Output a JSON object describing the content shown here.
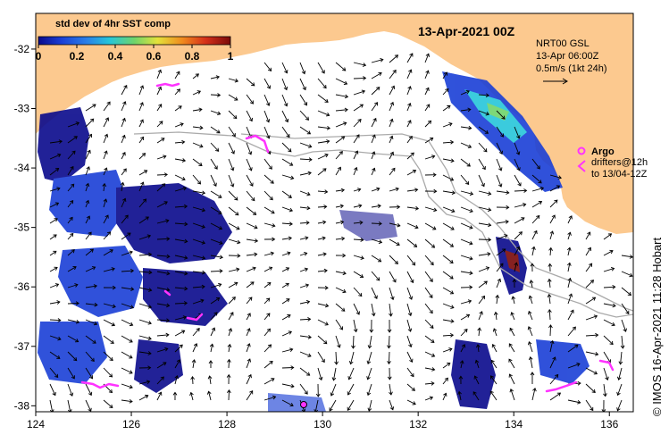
{
  "map": {
    "title": "13-Apr-2021 00Z",
    "credit": "©  IMOS 16-Apr-2021 11:28 Hobart",
    "land_color": "#fcc98f",
    "ocean_color": "#ffffff",
    "x_axis": {
      "min": 124,
      "max": 136.5,
      "ticks": [
        "124",
        "126",
        "128",
        "130",
        "132",
        "134",
        "136"
      ]
    },
    "y_axis": {
      "min": -38.1,
      "max": -31.4,
      "ticks": [
        "-32",
        "-33",
        "-34",
        "-35",
        "-36",
        "-37",
        "-38"
      ]
    },
    "colorbar": {
      "title": "std dev of 4hr SST comp",
      "ticks": [
        "0",
        "0.2",
        "0.4",
        "0.6",
        "0.8",
        "1"
      ],
      "colors": [
        "#0a0a8c",
        "#1a3fd6",
        "#2a7fe8",
        "#26c6da",
        "#6fd46a",
        "#e4e23a",
        "#f08a1e",
        "#d6301a",
        "#7a0a0a"
      ]
    },
    "current_legend": {
      "line1": "NRT00 GSL",
      "line2": "13-Apr 06:00Z",
      "line3": "0.5m/s (1kt 24h)"
    },
    "argo_legend": {
      "argo_label": "Argo",
      "drifters_line1": "drifters@12h",
      "drifters_line2": "to 13/04-12Z",
      "marker_color": "#ff33ff"
    }
  }
}
